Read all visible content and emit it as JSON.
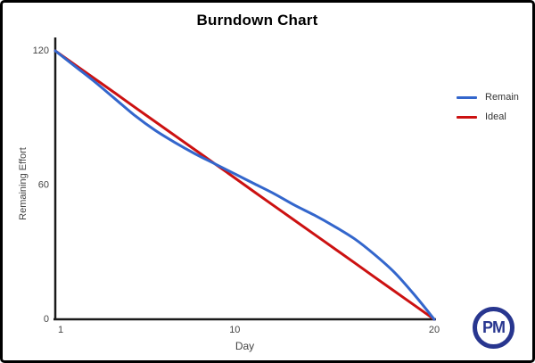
{
  "chart_data": {
    "type": "line",
    "title": "Burndown Chart",
    "xlabel": "Day",
    "ylabel": "Remaining Effort",
    "xlim": [
      1,
      20
    ],
    "ylim": [
      0,
      120
    ],
    "xticks": [
      1,
      10,
      20
    ],
    "yticks": [
      0,
      60,
      120
    ],
    "grid": false,
    "legend_position": "right",
    "x": [
      1,
      2,
      3,
      4,
      5,
      6,
      7,
      8,
      9,
      10,
      11,
      12,
      13,
      14,
      15,
      16,
      17,
      18,
      19,
      20
    ],
    "series": [
      {
        "name": "Remain",
        "color": "#3366cc",
        "values": [
          120,
          113,
          106,
          98.5,
          91,
          84.5,
          79,
          74,
          69.5,
          65,
          60.5,
          56,
          51,
          46.5,
          41.5,
          36,
          29,
          21,
          11,
          0
        ]
      },
      {
        "name": "Ideal",
        "color": "#cc1111",
        "values": [
          120,
          113.7,
          107.4,
          101.1,
          94.7,
          88.4,
          82.1,
          75.8,
          69.5,
          63.2,
          56.8,
          50.5,
          44.2,
          37.9,
          31.6,
          25.3,
          18.9,
          12.6,
          6.3,
          0
        ]
      }
    ],
    "axis_color": "#1a1a1a",
    "tick_label_color": "#444444"
  },
  "logo": {
    "text": "PM",
    "color": "#28368f"
  }
}
